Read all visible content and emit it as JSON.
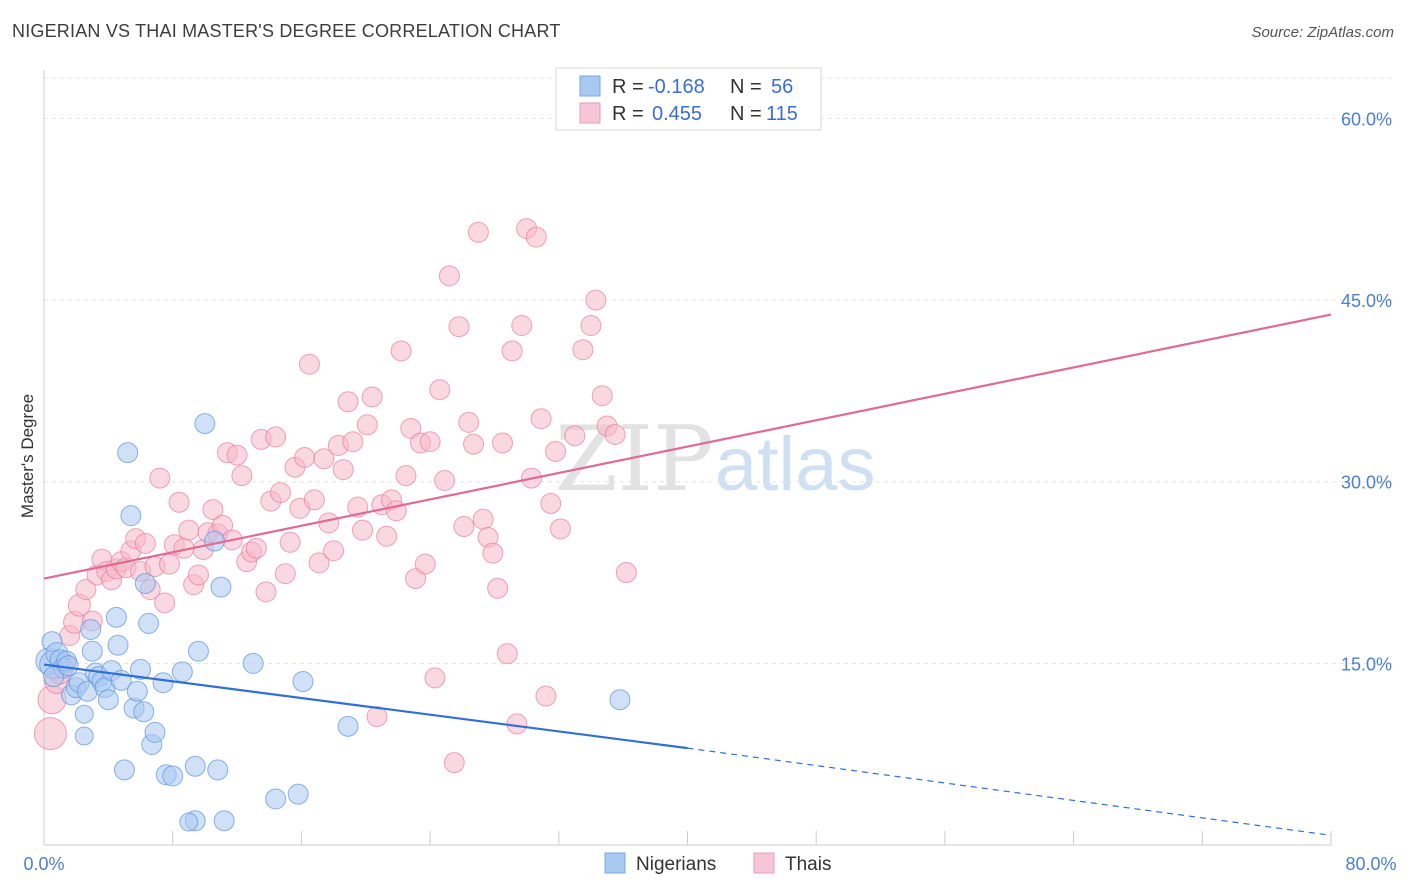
{
  "header": {
    "title": "NIGERIAN VS THAI MASTER'S DEGREE CORRELATION CHART",
    "source": "Source: ZipAtlas.com"
  },
  "watermark": {
    "zip": "ZIP",
    "atlas": "atlas"
  },
  "legend": {
    "r_label": "R =",
    "n_label": "N =",
    "items": [
      {
        "r": "-0.168",
        "n": "56",
        "color": "#a9c8f0"
      },
      {
        "r": "0.455",
        "n": "115",
        "color": "#f5b8cb"
      }
    ]
  },
  "chart_data": {
    "type": "scatter",
    "title": "NIGERIAN VS THAI MASTER'S DEGREE CORRELATION CHART",
    "ylabel": "Master's Degree",
    "xlim": [
      0,
      80
    ],
    "ylim": [
      0,
      64
    ],
    "x_tick_labels": [
      "0.0%",
      "80.0%"
    ],
    "y_ticks": [
      15,
      30,
      45,
      60
    ],
    "y_tick_labels": [
      "15.0%",
      "30.0%",
      "45.0%",
      "60.0%"
    ],
    "grid": true,
    "legend_position": "bottom-center",
    "series": [
      {
        "name": "Nigerians",
        "color": "#5b93de",
        "fill": "#a9c8f0",
        "trend": {
          "x0": 0,
          "y0": 14.9,
          "x1": 40,
          "y1": 8.0,
          "dashed_to_x": 80,
          "dashed_to_y": 0.8,
          "color": "#2f6fd6"
        },
        "points": [
          [
            0.3,
            15.2,
            13
          ],
          [
            0.5,
            16.8,
            10
          ],
          [
            0.6,
            14.9,
            14
          ],
          [
            0.8,
            15.8,
            11
          ],
          [
            1.0,
            15.3,
            10
          ],
          [
            1.2,
            14.6,
            10
          ],
          [
            0.6,
            13.9,
            10
          ],
          [
            1.4,
            15.2,
            10
          ],
          [
            1.5,
            14.8,
            10
          ],
          [
            1.7,
            12.4,
            10
          ],
          [
            2.0,
            13.0,
            10
          ],
          [
            2.2,
            13.4,
            10
          ],
          [
            2.5,
            10.8,
            9
          ],
          [
            2.5,
            9.0,
            9
          ],
          [
            2.7,
            12.7,
            10
          ],
          [
            2.9,
            17.8,
            10
          ],
          [
            3.0,
            16.0,
            10
          ],
          [
            3.2,
            14.2,
            10
          ],
          [
            3.4,
            13.9,
            10
          ],
          [
            3.6,
            13.5,
            10
          ],
          [
            3.8,
            13.0,
            10
          ],
          [
            4.0,
            12.0,
            10
          ],
          [
            4.2,
            14.4,
            10
          ],
          [
            4.5,
            18.8,
            10
          ],
          [
            4.6,
            16.5,
            10
          ],
          [
            4.8,
            13.6,
            10
          ],
          [
            5.0,
            6.2,
            10
          ],
          [
            5.2,
            32.4,
            10
          ],
          [
            5.4,
            27.2,
            10
          ],
          [
            5.6,
            11.3,
            10
          ],
          [
            5.8,
            12.7,
            10
          ],
          [
            6.0,
            14.5,
            10
          ],
          [
            6.2,
            11.0,
            10
          ],
          [
            6.3,
            21.6,
            10
          ],
          [
            6.5,
            18.3,
            10
          ],
          [
            6.7,
            8.3,
            10
          ],
          [
            6.9,
            9.3,
            10
          ],
          [
            7.4,
            13.4,
            10
          ],
          [
            7.6,
            5.8,
            10
          ],
          [
            8.0,
            5.7,
            10
          ],
          [
            8.6,
            14.3,
            10
          ],
          [
            9.4,
            6.5,
            10
          ],
          [
            9.6,
            16.0,
            10
          ],
          [
            10.8,
            6.2,
            10
          ],
          [
            10.6,
            25.1,
            10
          ],
          [
            10.0,
            34.8,
            10
          ],
          [
            11.0,
            21.3,
            10
          ],
          [
            13.0,
            15.0,
            10
          ],
          [
            14.4,
            3.8,
            10
          ],
          [
            15.8,
            4.2,
            10
          ],
          [
            16.1,
            13.5,
            10
          ],
          [
            18.9,
            9.8,
            10
          ],
          [
            9.4,
            2.0,
            10
          ],
          [
            11.2,
            2.0,
            10
          ],
          [
            9.0,
            1.9,
            9
          ],
          [
            35.8,
            12.0,
            10
          ]
        ]
      },
      {
        "name": "Thais",
        "color": "#e87da0",
        "fill": "#f5b8cb",
        "trend": {
          "x0": 0,
          "y0": 22.0,
          "x1": 80,
          "y1": 43.8,
          "color": "#e06a94"
        },
        "points": [
          [
            0.4,
            9.2,
            16
          ],
          [
            0.5,
            12.0,
            14
          ],
          [
            0.8,
            13.5,
            12
          ],
          [
            1.0,
            14.2,
            11
          ],
          [
            1.3,
            15.0,
            10
          ],
          [
            1.6,
            17.3,
            10
          ],
          [
            1.9,
            18.4,
            11
          ],
          [
            2.2,
            19.8,
            11
          ],
          [
            2.6,
            21.1,
            10
          ],
          [
            3.0,
            18.5,
            10
          ],
          [
            3.3,
            22.3,
            10
          ],
          [
            3.6,
            23.6,
            10
          ],
          [
            3.9,
            22.6,
            10
          ],
          [
            4.2,
            21.9,
            10
          ],
          [
            4.5,
            22.8,
            10
          ],
          [
            4.8,
            23.4,
            10
          ],
          [
            5.1,
            22.9,
            10
          ],
          [
            5.4,
            24.3,
            10
          ],
          [
            5.7,
            25.3,
            10
          ],
          [
            6.0,
            22.6,
            10
          ],
          [
            6.3,
            24.9,
            10
          ],
          [
            6.6,
            21.1,
            10
          ],
          [
            6.9,
            23.0,
            10
          ],
          [
            7.2,
            30.3,
            10
          ],
          [
            7.5,
            20.0,
            10
          ],
          [
            7.8,
            23.2,
            10
          ],
          [
            8.1,
            24.8,
            10
          ],
          [
            8.4,
            28.3,
            10
          ],
          [
            8.7,
            24.5,
            10
          ],
          [
            9.0,
            26.0,
            10
          ],
          [
            9.3,
            21.5,
            10
          ],
          [
            9.6,
            22.3,
            10
          ],
          [
            9.9,
            24.4,
            10
          ],
          [
            10.2,
            25.8,
            10
          ],
          [
            10.5,
            27.7,
            10
          ],
          [
            10.8,
            25.7,
            10
          ],
          [
            11.1,
            26.4,
            10
          ],
          [
            11.4,
            32.4,
            10
          ],
          [
            11.7,
            25.2,
            10
          ],
          [
            12.0,
            32.2,
            10
          ],
          [
            12.3,
            30.5,
            10
          ],
          [
            12.6,
            23.4,
            10
          ],
          [
            12.9,
            24.2,
            10
          ],
          [
            13.2,
            24.5,
            10
          ],
          [
            13.5,
            33.5,
            10
          ],
          [
            13.8,
            20.9,
            10
          ],
          [
            14.1,
            28.4,
            10
          ],
          [
            14.4,
            33.7,
            10
          ],
          [
            14.7,
            29.1,
            10
          ],
          [
            15.0,
            22.4,
            10
          ],
          [
            15.3,
            25.0,
            10
          ],
          [
            15.6,
            31.2,
            10
          ],
          [
            15.9,
            27.8,
            10
          ],
          [
            16.2,
            32.0,
            10
          ],
          [
            16.5,
            39.7,
            10
          ],
          [
            16.8,
            28.5,
            10
          ],
          [
            17.1,
            23.3,
            10
          ],
          [
            17.4,
            31.9,
            10
          ],
          [
            17.7,
            26.6,
            10
          ],
          [
            18.0,
            24.3,
            10
          ],
          [
            18.3,
            33.0,
            10
          ],
          [
            18.6,
            31.0,
            10
          ],
          [
            18.9,
            36.6,
            10
          ],
          [
            19.2,
            33.3,
            10
          ],
          [
            19.5,
            27.9,
            10
          ],
          [
            19.8,
            26.0,
            10
          ],
          [
            20.1,
            34.7,
            10
          ],
          [
            20.4,
            37.0,
            10
          ],
          [
            20.7,
            10.6,
            10
          ],
          [
            21.0,
            28.1,
            10
          ],
          [
            21.3,
            25.5,
            10
          ],
          [
            21.6,
            28.5,
            10
          ],
          [
            21.9,
            27.6,
            10
          ],
          [
            22.2,
            40.8,
            10
          ],
          [
            22.5,
            30.5,
            10
          ],
          [
            22.8,
            34.4,
            10
          ],
          [
            23.1,
            22.0,
            10
          ],
          [
            23.4,
            33.2,
            10
          ],
          [
            23.7,
            23.2,
            10
          ],
          [
            24.0,
            33.3,
            10
          ],
          [
            24.3,
            13.8,
            10
          ],
          [
            24.6,
            37.6,
            10
          ],
          [
            24.9,
            30.1,
            10
          ],
          [
            25.2,
            47.0,
            10
          ],
          [
            25.5,
            6.8,
            10
          ],
          [
            25.8,
            42.8,
            10
          ],
          [
            26.1,
            26.3,
            10
          ],
          [
            26.4,
            34.9,
            10
          ],
          [
            26.7,
            33.1,
            10
          ],
          [
            27.0,
            50.6,
            10
          ],
          [
            27.3,
            26.9,
            10
          ],
          [
            27.6,
            25.4,
            10
          ],
          [
            27.9,
            24.1,
            10
          ],
          [
            28.2,
            21.2,
            10
          ],
          [
            28.5,
            33.2,
            10
          ],
          [
            28.8,
            15.8,
            10
          ],
          [
            29.1,
            40.8,
            10
          ],
          [
            29.4,
            10.0,
            10
          ],
          [
            29.7,
            42.9,
            10
          ],
          [
            30.0,
            50.9,
            10
          ],
          [
            30.3,
            30.3,
            10
          ],
          [
            30.6,
            50.2,
            10
          ],
          [
            30.9,
            35.2,
            10
          ],
          [
            31.2,
            12.3,
            10
          ],
          [
            31.5,
            28.2,
            10
          ],
          [
            31.8,
            32.5,
            10
          ],
          [
            32.1,
            26.1,
            10
          ],
          [
            33.0,
            33.8,
            10
          ],
          [
            33.5,
            40.9,
            10
          ],
          [
            34.0,
            42.9,
            10
          ],
          [
            34.3,
            45.0,
            10
          ],
          [
            34.7,
            37.1,
            10
          ],
          [
            35.0,
            34.6,
            10
          ],
          [
            35.5,
            33.9,
            10
          ],
          [
            36.2,
            22.5,
            10
          ]
        ]
      }
    ]
  }
}
